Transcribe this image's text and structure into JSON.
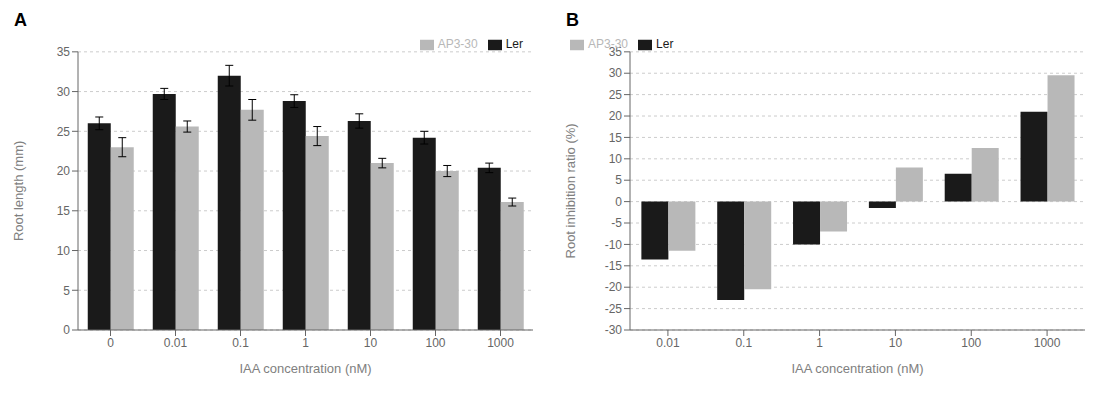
{
  "chart_data": [
    {
      "type": "bar",
      "title": "A",
      "categories": [
        "0",
        "0.01",
        "0.1",
        "1",
        "10",
        "100",
        "1000"
      ],
      "series": [
        {
          "name": "Ler",
          "color": "#1a1a1a",
          "values": [
            26.0,
            29.7,
            32.0,
            28.8,
            26.3,
            24.2,
            20.4
          ],
          "errors": [
            0.8,
            0.7,
            1.3,
            0.8,
            0.9,
            0.8,
            0.6
          ]
        },
        {
          "name": "AP3-30",
          "color": "#b8b8b8",
          "values": [
            23.0,
            25.6,
            27.7,
            24.4,
            21.0,
            20.0,
            16.1
          ],
          "errors": [
            1.2,
            0.7,
            1.3,
            1.2,
            0.6,
            0.7,
            0.5
          ]
        }
      ],
      "xlabel": "IAA concentration (nM)",
      "ylabel": "Root length (mm)",
      "ylim": [
        0,
        35
      ],
      "yticks": [
        0,
        5,
        10,
        15,
        20,
        25,
        30,
        35
      ],
      "grid": true,
      "legend": "upper right"
    },
    {
      "type": "bar",
      "title": "B",
      "categories": [
        "0.01",
        "0.1",
        "1",
        "10",
        "100",
        "1000"
      ],
      "series": [
        {
          "name": "Ler",
          "color": "#1a1a1a",
          "values": [
            -13.5,
            -23.0,
            -10.0,
            -1.5,
            6.5,
            21.0
          ]
        },
        {
          "name": "AP3-30",
          "color": "#b8b8b8",
          "values": [
            -11.5,
            -20.5,
            -7.0,
            8.0,
            12.5,
            29.5
          ]
        }
      ],
      "xlabel": "IAA concentration (nM)",
      "ylabel": "Root inhibition ratio (%)",
      "ylim": [
        -30,
        35
      ],
      "yticks": [
        -30,
        -25,
        -20,
        -15,
        -10,
        -5,
        0,
        5,
        10,
        15,
        20,
        25,
        30,
        35
      ],
      "grid": true,
      "legend": "upper left"
    }
  ]
}
